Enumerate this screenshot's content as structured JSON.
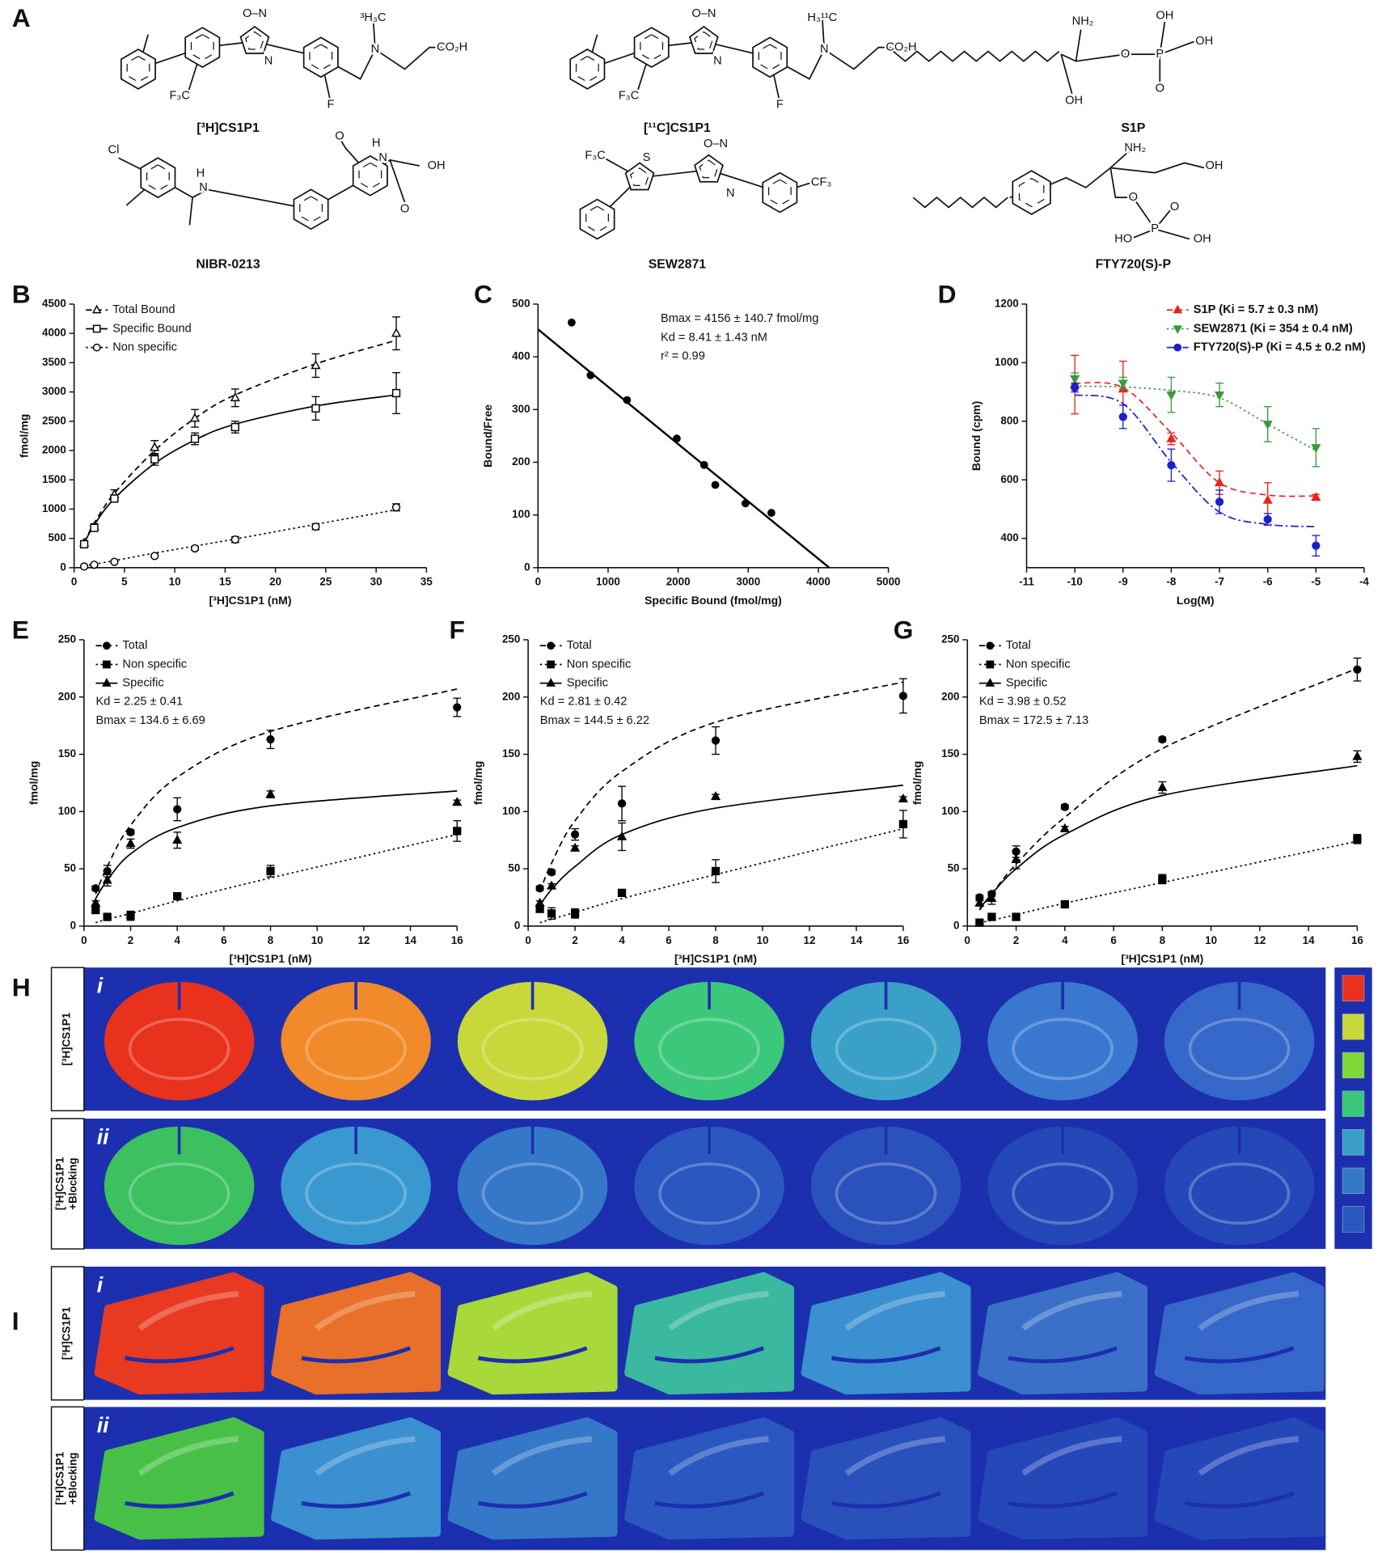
{
  "figure_a": {
    "panel": "A",
    "compounds": [
      {
        "name": "[³H]CS1P1",
        "atoms": [
          "O–N",
          "N",
          "F₃C",
          "F",
          "³H₃C",
          "N",
          "CO₂H"
        ]
      },
      {
        "name": "[¹¹C]CS1P1",
        "atoms": [
          "O–N",
          "N",
          "F₃C",
          "F",
          "H₃¹¹C",
          "N",
          "CO₂H"
        ]
      },
      {
        "name": "S1P",
        "atoms": [
          "NH₂",
          "OH",
          "O",
          "P",
          "OH",
          "OH",
          "O"
        ]
      },
      {
        "name": "NIBR-0213",
        "atoms": [
          "Cl",
          "H",
          "N",
          "O",
          "H",
          "N",
          "OH",
          "O"
        ]
      },
      {
        "name": "SEW2871",
        "atoms": [
          "F₃C",
          "S",
          "O–N",
          "N",
          "CF₃"
        ]
      },
      {
        "name": "FTY720(S)-P",
        "atoms": [
          "NH₂",
          "OH",
          "O",
          "P",
          "OH",
          "HO",
          "O"
        ]
      }
    ]
  },
  "chart_data": [
    {
      "panel": "B",
      "type": "line",
      "x": [
        1,
        2,
        4,
        8,
        12,
        16,
        24,
        32
      ],
      "xlabel": "[³H]CS1P1 (nM)",
      "ylabel": "fmol/mg",
      "xlim": [
        0,
        35
      ],
      "xticks": [
        0,
        5,
        10,
        15,
        20,
        25,
        30,
        35
      ],
      "ylim": [
        0,
        4500
      ],
      "yticks": [
        0,
        500,
        1000,
        1500,
        2000,
        2500,
        3000,
        3500,
        4000,
        4500
      ],
      "legend": "upper left",
      "series": [
        {
          "name": "Total Bound",
          "color": "#000000",
          "marker": "triangle-up",
          "filled": false,
          "dash": "dashed",
          "values": [
            420,
            700,
            1250,
            2050,
            2550,
            2900,
            3450,
            4000
          ],
          "errors": [
            40,
            50,
            80,
            120,
            150,
            150,
            200,
            280
          ],
          "fit": [
            430,
            760,
            1270,
            2000,
            2550,
            2950,
            3480,
            3880
          ]
        },
        {
          "name": "Specific Bound",
          "color": "#000000",
          "marker": "square",
          "filled": false,
          "dash": "solid",
          "values": [
            400,
            680,
            1180,
            1850,
            2200,
            2400,
            2720,
            2980
          ],
          "errors": [
            40,
            40,
            60,
            100,
            100,
            100,
            200,
            350
          ],
          "fit": [
            420,
            730,
            1180,
            1780,
            2180,
            2450,
            2760,
            2950
          ]
        },
        {
          "name": "Non specific",
          "color": "#000000",
          "marker": "circle",
          "filled": false,
          "dash": "dotted",
          "values": [
            20,
            50,
            100,
            200,
            330,
            480,
            700,
            1030
          ],
          "errors": [
            10,
            10,
            10,
            20,
            30,
            50,
            50,
            60
          ],
          "fit": [
            30,
            60,
            120,
            250,
            370,
            490,
            740,
            990
          ]
        }
      ]
    },
    {
      "panel": "C",
      "type": "scatter",
      "x": [
        480,
        750,
        1270,
        1980,
        2370,
        2530,
        2960,
        3330
      ],
      "values": [
        465,
        365,
        318,
        245,
        195,
        157,
        122,
        104
      ],
      "color": "#000000",
      "fit_line": {
        "x": [
          0,
          4156
        ],
        "values": [
          452,
          0
        ]
      },
      "xlabel": "Specific Bound (fmol/mg)",
      "ylabel": "Bound/Free",
      "xlim": [
        0,
        5000
      ],
      "xticks": [
        0,
        1000,
        2000,
        3000,
        4000,
        5000
      ],
      "ylim": [
        0,
        500
      ],
      "yticks": [
        0,
        100,
        200,
        300,
        400,
        500
      ],
      "annotations": [
        "Bmax = 4156 ± 140.7 fmol/mg",
        "Kd = 8.41 ± 1.43 nM",
        "r² = 0.99"
      ]
    },
    {
      "panel": "D",
      "type": "line",
      "x": [
        -10,
        -9,
        -8,
        -7,
        -6,
        -5
      ],
      "xlabel": "Log(M)",
      "ylabel": "Bound (cpm)",
      "xlim": [
        -11,
        -4
      ],
      "xticks": [
        -11,
        -10,
        -9,
        -8,
        -7,
        -6,
        -5,
        -4
      ],
      "ylim": [
        300,
        1200
      ],
      "yticks": [
        400,
        600,
        800,
        1000,
        1200
      ],
      "legend": "upper right",
      "series": [
        {
          "name": "S1P (Ki = 5.7 ± 0.3 nM)",
          "color": "#e8231f",
          "marker": "triangle-up",
          "filled": true,
          "dash": "dashed",
          "values": [
            925,
            910,
            740,
            590,
            530,
            540
          ],
          "errors": [
            100,
            95,
            20,
            40,
            60,
            10
          ],
          "fit": [
            930,
            915,
            760,
            590,
            548,
            545
          ]
        },
        {
          "name": "SEW2871 (Ki = 354 ± 0.4 nM)",
          "color": "#3a9a3a",
          "marker": "triangle-down",
          "filled": true,
          "dash": "dotted",
          "values": [
            945,
            930,
            890,
            890,
            790,
            710
          ],
          "errors": [
            20,
            20,
            60,
            40,
            60,
            65
          ],
          "fit": [
            920,
            917,
            905,
            880,
            790,
            700
          ]
        },
        {
          "name": "FTY720(S)-P (Ki = 4.5 ± 0.2 nM)",
          "color": "#1f1fc8",
          "marker": "circle",
          "filled": true,
          "dash": "dashdot",
          "values": [
            915,
            815,
            650,
            525,
            465,
            375
          ],
          "errors": [
            15,
            40,
            55,
            40,
            20,
            35
          ],
          "fit": [
            890,
            860,
            660,
            490,
            448,
            440
          ]
        }
      ]
    },
    {
      "panel": "E",
      "type": "line",
      "x": [
        0.5,
        1,
        2,
        4,
        8,
        16
      ],
      "xlabel": "[³H]CS1P1 (nM)",
      "ylabel": "fmol/mg",
      "xlim": [
        0,
        16
      ],
      "xticks": [
        0,
        2,
        4,
        6,
        8,
        10,
        12,
        14,
        16
      ],
      "ylim": [
        0,
        250
      ],
      "yticks": [
        0,
        50,
        100,
        150,
        200,
        250
      ],
      "legend": "upper left",
      "annotations": [
        "Kd = 2.25 ± 0.41",
        "Bmax = 134.6 ± 6.69"
      ],
      "series": [
        {
          "name": "Total",
          "color": "#000000",
          "marker": "circle",
          "filled": true,
          "dash": "dashed",
          "values": [
            33,
            48,
            82,
            102,
            163,
            191
          ],
          "errors": [
            2,
            5,
            2,
            10,
            8,
            8
          ],
          "fit": [
            28,
            52,
            88,
            130,
            170,
            207
          ]
        },
        {
          "name": "Non specific",
          "color": "#000000",
          "marker": "square",
          "filled": true,
          "dash": "dotted",
          "values": [
            14,
            8,
            9,
            26,
            48,
            83
          ],
          "errors": [
            2,
            2,
            4,
            3,
            5,
            9
          ],
          "fit": [
            3,
            6,
            11,
            22,
            42,
            80
          ]
        },
        {
          "name": "Specific",
          "color": "#000000",
          "marker": "triangle-up",
          "filled": true,
          "dash": "solid",
          "values": [
            20,
            40,
            72,
            75,
            115,
            108
          ],
          "errors": [
            2,
            5,
            4,
            7,
            3,
            2
          ],
          "fit": [
            24,
            40,
            63,
            86,
            105,
            118
          ]
        }
      ]
    },
    {
      "panel": "F",
      "type": "line",
      "x": [
        0.5,
        1,
        2,
        4,
        8,
        16
      ],
      "xlabel": "[³H]CS1P1 (nM)",
      "ylabel": "fmol/mg",
      "xlim": [
        0,
        16
      ],
      "xticks": [
        0,
        2,
        4,
        6,
        8,
        10,
        12,
        14,
        16
      ],
      "ylim": [
        0,
        250
      ],
      "yticks": [
        0,
        50,
        100,
        150,
        200,
        250
      ],
      "legend": "upper left",
      "annotations": [
        "Kd = 2.81 ± 0.42",
        "Bmax = 144.5 ± 6.22"
      ],
      "series": [
        {
          "name": "Total",
          "color": "#000000",
          "marker": "circle",
          "filled": true,
          "dash": "dashed",
          "values": [
            33,
            47,
            80,
            107,
            162,
            201
          ],
          "errors": [
            2,
            2,
            5,
            15,
            12,
            15
          ],
          "fit": [
            30,
            55,
            92,
            135,
            178,
            213
          ]
        },
        {
          "name": "Non specific",
          "color": "#000000",
          "marker": "square",
          "filled": true,
          "dash": "dotted",
          "values": [
            15,
            11,
            11,
            29,
            48,
            89
          ],
          "errors": [
            2,
            5,
            4,
            2,
            10,
            12
          ],
          "fit": [
            3,
            6,
            12,
            24,
            45,
            85
          ]
        },
        {
          "name": "Specific",
          "color": "#000000",
          "marker": "triangle-up",
          "filled": true,
          "dash": "solid",
          "values": [
            20,
            35,
            68,
            78,
            113,
            111
          ],
          "errors": [
            2,
            2,
            2,
            12,
            2,
            2
          ],
          "fit": [
            18,
            32,
            52,
            80,
            103,
            123
          ]
        }
      ]
    },
    {
      "panel": "G",
      "type": "line",
      "x": [
        0.5,
        1,
        2,
        4,
        8,
        16
      ],
      "xlabel": "[³H]CS1P1 (nM)",
      "ylabel": "fmol/mg",
      "xlim": [
        0,
        16
      ],
      "xticks": [
        0,
        2,
        4,
        6,
        8,
        10,
        12,
        14,
        16
      ],
      "ylim": [
        0,
        250
      ],
      "yticks": [
        0,
        50,
        100,
        150,
        200,
        250
      ],
      "legend": "upper left",
      "annotations": [
        "Kd = 3.98 ± 0.52",
        "Bmax = 172.5 ± 7.13"
      ],
      "series": [
        {
          "name": "Total",
          "color": "#000000",
          "marker": "circle",
          "filled": true,
          "dash": "dashed",
          "values": [
            25,
            28,
            65,
            104,
            163,
            224
          ],
          "errors": [
            2,
            2,
            5,
            2,
            2,
            10
          ],
          "fit": [
            14,
            28,
            54,
            95,
            155,
            225
          ]
        },
        {
          "name": "Non specific",
          "color": "#000000",
          "marker": "square",
          "filled": true,
          "dash": "dotted",
          "values": [
            3,
            8,
            8,
            19,
            41,
            76
          ],
          "errors": [
            1,
            1,
            1,
            2,
            4,
            4
          ],
          "fit": [
            3,
            5,
            10,
            20,
            38,
            74
          ]
        },
        {
          "name": "Specific",
          "color": "#000000",
          "marker": "triangle-up",
          "filled": true,
          "dash": "solid",
          "values": [
            20,
            24,
            58,
            85,
            121,
            148
          ],
          "errors": [
            2,
            5,
            8,
            2,
            5,
            5
          ],
          "fit": [
            15,
            28,
            50,
            80,
            114,
            140
          ]
        }
      ]
    }
  ],
  "autoradiography": [
    {
      "panel": "H",
      "rows": [
        {
          "numeral": "i",
          "label": [
            "[³H]CS1P1"
          ]
        },
        {
          "numeral": "ii",
          "label": [
            "[³H]CS1P1",
            "+Blocking"
          ]
        }
      ]
    },
    {
      "panel": "I",
      "rows": [
        {
          "numeral": "i",
          "label": [
            "[³H]CS1P1"
          ]
        },
        {
          "numeral": "ii",
          "label": [
            "[³H]CS1P1",
            "+Blocking"
          ]
        }
      ]
    }
  ]
}
